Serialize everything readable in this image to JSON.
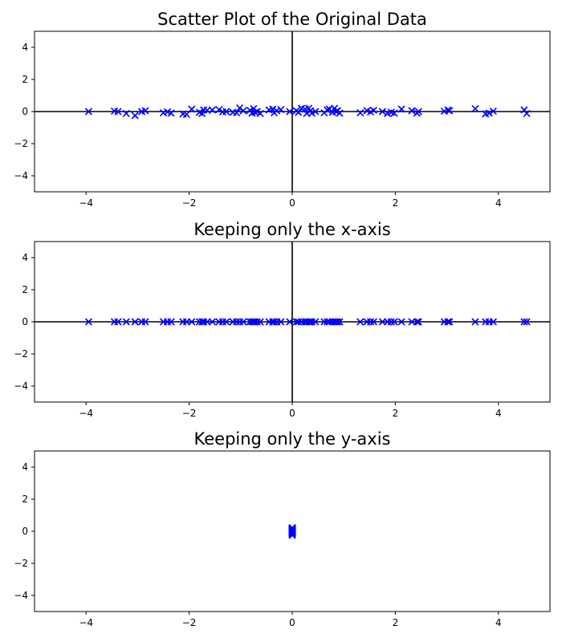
{
  "chart_data": [
    {
      "type": "scatter",
      "title": "Scatter Plot of the Original Data",
      "marker": "x",
      "color": "#0000ff",
      "xlim": [
        -5,
        5
      ],
      "ylim": [
        -5,
        5
      ],
      "xticks": [
        -4,
        -2,
        0,
        2,
        4
      ],
      "yticks": [
        -4,
        -2,
        0,
        2,
        4
      ],
      "axis_lines": true,
      "grid": false,
      "x": [
        -3.95,
        -3.45,
        -3.38,
        -3.22,
        -3.05,
        -2.92,
        -2.85,
        -2.5,
        -2.42,
        -2.35,
        -2.12,
        -2.05,
        -1.95,
        -1.8,
        -1.75,
        -1.72,
        -1.65,
        -1.55,
        -1.42,
        -1.35,
        -1.28,
        -1.15,
        -1.08,
        -1.02,
        -0.95,
        -0.82,
        -0.78,
        -0.75,
        -0.72,
        -0.68,
        -0.62,
        -0.45,
        -0.38,
        -0.35,
        -0.3,
        -0.22,
        -0.05,
        0.08,
        0.12,
        0.18,
        0.25,
        0.28,
        0.32,
        0.35,
        0.38,
        0.45,
        0.62,
        0.68,
        0.72,
        0.78,
        0.82,
        0.85,
        0.88,
        0.92,
        1.32,
        1.45,
        1.52,
        1.58,
        1.75,
        1.85,
        1.92,
        1.98,
        2.12,
        2.32,
        2.42,
        2.45,
        2.95,
        3.02,
        3.05,
        3.55,
        3.75,
        3.82,
        3.9,
        4.5,
        4.55
      ],
      "y": [
        0.0,
        0.02,
        0.0,
        -0.12,
        -0.25,
        0.0,
        0.05,
        -0.08,
        -0.02,
        -0.1,
        -0.15,
        -0.18,
        0.15,
        -0.05,
        -0.12,
        0.1,
        0.08,
        0.1,
        0.12,
        -0.02,
        0.0,
        -0.05,
        -0.08,
        0.22,
        0.05,
        0.08,
        -0.1,
        0.18,
        -0.05,
        0.0,
        -0.12,
        0.1,
        0.15,
        -0.08,
        0.05,
        0.12,
        0.0,
        0.05,
        -0.05,
        0.2,
        0.15,
        -0.12,
        0.2,
        0.05,
        -0.1,
        0.0,
        -0.08,
        0.1,
        0.15,
        -0.05,
        0.2,
        0.0,
        0.05,
        -0.1,
        -0.08,
        0.05,
        -0.02,
        0.08,
        0.0,
        -0.12,
        -0.05,
        -0.1,
        0.15,
        0.05,
        -0.1,
        0.0,
        0.02,
        0.1,
        0.05,
        0.18,
        -0.15,
        -0.1,
        0.02,
        0.1,
        -0.12
      ]
    },
    {
      "type": "scatter",
      "title": "Keeping only the x-axis",
      "marker": "x",
      "color": "#0000ff",
      "xlim": [
        -5,
        5
      ],
      "ylim": [
        -5,
        5
      ],
      "xticks": [
        -4,
        -2,
        0,
        2,
        4
      ],
      "yticks": [
        -4,
        -2,
        0,
        2,
        4
      ],
      "axis_lines": true,
      "grid": false,
      "x": [
        -3.95,
        -3.45,
        -3.38,
        -3.22,
        -3.05,
        -2.92,
        -2.85,
        -2.5,
        -2.42,
        -2.35,
        -2.12,
        -2.05,
        -1.95,
        -1.8,
        -1.75,
        -1.72,
        -1.65,
        -1.55,
        -1.42,
        -1.35,
        -1.28,
        -1.15,
        -1.08,
        -1.02,
        -0.95,
        -0.82,
        -0.78,
        -0.75,
        -0.72,
        -0.68,
        -0.62,
        -0.45,
        -0.38,
        -0.35,
        -0.3,
        -0.22,
        -0.05,
        0.08,
        0.12,
        0.18,
        0.25,
        0.28,
        0.32,
        0.35,
        0.38,
        0.45,
        0.62,
        0.68,
        0.72,
        0.78,
        0.82,
        0.85,
        0.88,
        0.92,
        1.32,
        1.45,
        1.52,
        1.58,
        1.75,
        1.85,
        1.92,
        1.98,
        2.12,
        2.32,
        2.42,
        2.45,
        2.95,
        3.02,
        3.05,
        3.55,
        3.75,
        3.82,
        3.9,
        4.5,
        4.55
      ],
      "y": [
        0,
        0,
        0,
        0,
        0,
        0,
        0,
        0,
        0,
        0,
        0,
        0,
        0,
        0,
        0,
        0,
        0,
        0,
        0,
        0,
        0,
        0,
        0,
        0,
        0,
        0,
        0,
        0,
        0,
        0,
        0,
        0,
        0,
        0,
        0,
        0,
        0,
        0,
        0,
        0,
        0,
        0,
        0,
        0,
        0,
        0,
        0,
        0,
        0,
        0,
        0,
        0,
        0,
        0,
        0,
        0,
        0,
        0,
        0,
        0,
        0,
        0,
        0,
        0,
        0,
        0,
        0,
        0,
        0,
        0,
        0,
        0,
        0,
        0,
        0
      ]
    },
    {
      "type": "scatter",
      "title": "Keeping only the y-axis",
      "marker": "x",
      "color": "#0000ff",
      "xlim": [
        -5,
        5
      ],
      "ylim": [
        -5,
        5
      ],
      "xticks": [
        -4,
        -2,
        0,
        2,
        4
      ],
      "yticks": [
        -4,
        -2,
        0,
        2,
        4
      ],
      "axis_lines": false,
      "grid": false,
      "x": [
        0,
        0,
        0,
        0,
        0,
        0,
        0,
        0,
        0,
        0,
        0,
        0,
        0,
        0,
        0,
        0,
        0,
        0,
        0,
        0,
        0,
        0,
        0,
        0,
        0,
        0,
        0,
        0,
        0,
        0,
        0,
        0,
        0,
        0,
        0,
        0,
        0,
        0,
        0,
        0,
        0,
        0,
        0,
        0,
        0,
        0,
        0,
        0,
        0,
        0,
        0,
        0,
        0,
        0,
        0,
        0,
        0,
        0,
        0,
        0,
        0,
        0,
        0,
        0,
        0,
        0,
        0,
        0,
        0,
        0,
        0,
        0,
        0,
        0,
        0
      ],
      "y": [
        0.0,
        0.02,
        0.0,
        -0.12,
        -0.25,
        0.0,
        0.05,
        -0.08,
        -0.02,
        -0.1,
        -0.15,
        -0.18,
        0.15,
        -0.05,
        -0.12,
        0.1,
        0.08,
        0.1,
        0.12,
        -0.02,
        0.0,
        -0.05,
        -0.08,
        0.22,
        0.05,
        0.08,
        -0.1,
        0.18,
        -0.05,
        0.0,
        -0.12,
        0.1,
        0.15,
        -0.08,
        0.05,
        0.12,
        0.0,
        0.05,
        -0.05,
        0.2,
        0.15,
        -0.12,
        0.2,
        0.05,
        -0.1,
        0.0,
        -0.08,
        0.1,
        0.15,
        -0.05,
        0.2,
        0.0,
        0.05,
        -0.1,
        -0.08,
        0.05,
        -0.02,
        0.08,
        0.0,
        -0.12,
        -0.05,
        -0.1,
        0.15,
        0.05,
        -0.1,
        0.0,
        0.02,
        0.1,
        0.05,
        0.18,
        -0.15,
        -0.1,
        0.02,
        0.1,
        -0.12
      ]
    }
  ]
}
